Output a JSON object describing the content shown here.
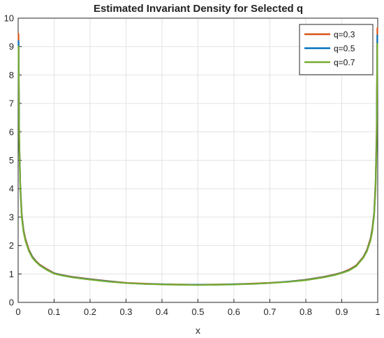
{
  "chart_data": {
    "type": "line",
    "title": "Estimated Invariant Density for Selected q",
    "xlabel": "x",
    "ylabel": "",
    "xlim": [
      0,
      1
    ],
    "ylim": [
      0,
      10
    ],
    "xticks": [
      "0",
      "0.1",
      "0.2",
      "0.3",
      "0.4",
      "0.5",
      "0.6",
      "0.7",
      "0.8",
      "0.9",
      "1"
    ],
    "yticks": [
      "0",
      "1",
      "2",
      "3",
      "4",
      "5",
      "6",
      "7",
      "8",
      "9",
      "10"
    ],
    "grid": true,
    "legend_position": "top-right",
    "series": [
      {
        "name": "q=0.3",
        "color": "#D95319",
        "x": [
          0.001,
          0.003,
          0.006,
          0.01,
          0.015,
          0.02,
          0.03,
          0.04,
          0.05,
          0.06,
          0.08,
          0.1,
          0.12,
          0.15,
          0.18,
          0.2,
          0.25,
          0.3,
          0.35,
          0.4,
          0.45,
          0.5,
          0.55,
          0.6,
          0.65,
          0.7,
          0.75,
          0.8,
          0.82,
          0.85,
          0.88,
          0.9,
          0.92,
          0.94,
          0.95,
          0.96,
          0.97,
          0.98,
          0.985,
          0.99,
          0.994,
          0.997,
          0.999
        ],
        "y": [
          9.45,
          5.8,
          4.1,
          3.1,
          2.55,
          2.25,
          1.85,
          1.6,
          1.45,
          1.33,
          1.17,
          1.03,
          0.97,
          0.9,
          0.85,
          0.82,
          0.75,
          0.69,
          0.66,
          0.64,
          0.63,
          0.62,
          0.63,
          0.64,
          0.66,
          0.69,
          0.73,
          0.8,
          0.84,
          0.9,
          0.98,
          1.05,
          1.15,
          1.3,
          1.45,
          1.6,
          1.85,
          2.25,
          2.6,
          3.15,
          4.2,
          6.0,
          9.65
        ]
      },
      {
        "name": "q=0.5",
        "color": "#0072BD",
        "x": [
          0.001,
          0.003,
          0.006,
          0.01,
          0.015,
          0.02,
          0.03,
          0.04,
          0.05,
          0.06,
          0.08,
          0.1,
          0.12,
          0.15,
          0.18,
          0.2,
          0.25,
          0.3,
          0.35,
          0.4,
          0.45,
          0.5,
          0.55,
          0.6,
          0.65,
          0.7,
          0.75,
          0.8,
          0.82,
          0.85,
          0.88,
          0.9,
          0.92,
          0.94,
          0.95,
          0.96,
          0.97,
          0.98,
          0.985,
          0.99,
          0.994,
          0.997,
          0.999
        ],
        "y": [
          9.2,
          5.7,
          4.05,
          3.05,
          2.5,
          2.2,
          1.82,
          1.58,
          1.43,
          1.31,
          1.15,
          1.02,
          0.96,
          0.89,
          0.84,
          0.81,
          0.74,
          0.68,
          0.65,
          0.64,
          0.62,
          0.62,
          0.62,
          0.64,
          0.65,
          0.68,
          0.73,
          0.79,
          0.83,
          0.89,
          0.97,
          1.04,
          1.13,
          1.28,
          1.43,
          1.58,
          1.82,
          2.2,
          2.55,
          3.1,
          4.1,
          5.8,
          9.4
        ]
      },
      {
        "name": "q=0.7",
        "color": "#77AC30",
        "x": [
          0.001,
          0.003,
          0.006,
          0.01,
          0.015,
          0.02,
          0.03,
          0.04,
          0.05,
          0.06,
          0.08,
          0.1,
          0.12,
          0.15,
          0.18,
          0.2,
          0.25,
          0.3,
          0.35,
          0.4,
          0.45,
          0.5,
          0.55,
          0.6,
          0.65,
          0.7,
          0.75,
          0.8,
          0.82,
          0.85,
          0.88,
          0.9,
          0.92,
          0.94,
          0.95,
          0.96,
          0.97,
          0.98,
          0.985,
          0.99,
          0.994,
          0.997,
          0.999
        ],
        "y": [
          9.0,
          5.6,
          4.0,
          3.0,
          2.48,
          2.18,
          1.8,
          1.56,
          1.42,
          1.3,
          1.14,
          1.01,
          0.95,
          0.88,
          0.83,
          0.8,
          0.73,
          0.68,
          0.65,
          0.63,
          0.62,
          0.61,
          0.62,
          0.63,
          0.65,
          0.68,
          0.72,
          0.78,
          0.82,
          0.88,
          0.96,
          1.03,
          1.12,
          1.27,
          1.42,
          1.57,
          1.8,
          2.18,
          2.5,
          3.05,
          4.0,
          5.6,
          9.1
        ]
      }
    ]
  }
}
